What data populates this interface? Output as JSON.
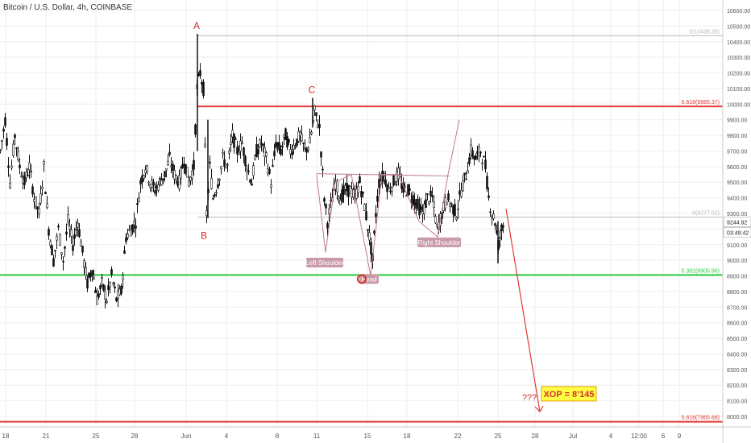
{
  "header": {
    "title": "Bitcoin / U.S. Dollar, 4h, COINBASE"
  },
  "colors": {
    "candle": "#111111",
    "grid": "#eeeeee",
    "axis_text": "#555555",
    "fib_red": "#e53935",
    "fib_green": "#2ecc40",
    "fib_gray": "#bbbbbb",
    "pattern_stroke": "#c07a8a",
    "label_bg": "#c99aa8",
    "projection": "#e53935",
    "wave_label": "#d32f2f",
    "price_tag_bg": "#ffffff",
    "annotation_box_bg": "#ffff44",
    "annotation_box_border": "#e0a000"
  },
  "chart_data": {
    "type": "candlestick",
    "title": "Bitcoin / U.S. Dollar, 4h, COINBASE",
    "y_range": [
      7900,
      10650
    ],
    "y_ticks": [
      8000,
      8100,
      8200,
      8300,
      8400,
      8500,
      8600,
      8700,
      8800,
      8900,
      9000,
      9100,
      9200,
      9300,
      9400,
      9500,
      9600,
      9700,
      9800,
      9900,
      10000,
      10100,
      10200,
      10300,
      10400,
      10500,
      10600
    ],
    "x_ticks": [
      "18",
      "21",
      "25",
      "28",
      "Jun",
      "4",
      "8",
      "11",
      "15",
      "18",
      "22",
      "25",
      "28",
      "Jul",
      "4",
      "12:00",
      "6",
      "9"
    ],
    "grid": true,
    "last_price": "9244.92",
    "countdown": "03:49:42",
    "price_path": [
      [
        0,
        9700
      ],
      [
        6,
        9900
      ],
      [
        12,
        9500
      ],
      [
        18,
        9800
      ],
      [
        24,
        9600
      ],
      [
        30,
        9500
      ],
      [
        36,
        9600
      ],
      [
        42,
        9400
      ],
      [
        48,
        9300
      ],
      [
        54,
        9600
      ],
      [
        60,
        9200
      ],
      [
        66,
        9000
      ],
      [
        72,
        9200
      ],
      [
        78,
        9000
      ],
      [
        84,
        9250
      ],
      [
        90,
        9100
      ],
      [
        96,
        9250
      ],
      [
        102,
        9050
      ],
      [
        108,
        8850
      ],
      [
        114,
        8950
      ],
      [
        120,
        8750
      ],
      [
        126,
        8850
      ],
      [
        132,
        8750
      ],
      [
        138,
        8900
      ],
      [
        144,
        8750
      ],
      [
        150,
        8800
      ],
      [
        156,
        9150
      ],
      [
        162,
        9200
      ],
      [
        168,
        9250
      ],
      [
        174,
        9500
      ],
      [
        180,
        9600
      ],
      [
        186,
        9500
      ],
      [
        192,
        9450
      ],
      [
        198,
        9500
      ],
      [
        204,
        9550
      ],
      [
        210,
        9650
      ],
      [
        216,
        9550
      ],
      [
        222,
        9500
      ],
      [
        228,
        9650
      ],
      [
        234,
        9500
      ],
      [
        240,
        9600
      ],
      [
        244,
        10100
      ],
      [
        248,
        10200
      ],
      [
        252,
        10100
      ],
      [
        256,
        9300
      ],
      [
        260,
        9600
      ],
      [
        264,
        9400
      ],
      [
        270,
        9500
      ],
      [
        276,
        9650
      ],
      [
        282,
        9600
      ],
      [
        288,
        9800
      ],
      [
        294,
        9700
      ],
      [
        300,
        9750
      ],
      [
        306,
        9600
      ],
      [
        312,
        9500
      ],
      [
        318,
        9700
      ],
      [
        324,
        9750
      ],
      [
        330,
        9650
      ],
      [
        336,
        9500
      ],
      [
        342,
        9750
      ],
      [
        348,
        9700
      ],
      [
        354,
        9800
      ],
      [
        360,
        9700
      ],
      [
        366,
        9750
      ],
      [
        372,
        9800
      ],
      [
        378,
        9700
      ],
      [
        384,
        9750
      ],
      [
        390,
        9950
      ],
      [
        396,
        9850
      ],
      [
        402,
        9400
      ],
      [
        406,
        9250
      ],
      [
        410,
        9350
      ],
      [
        416,
        9500
      ],
      [
        422,
        9400
      ],
      [
        428,
        9450
      ],
      [
        434,
        9450
      ],
      [
        440,
        9400
      ],
      [
        446,
        9500
      ],
      [
        452,
        9350
      ],
      [
        458,
        9150
      ],
      [
        462,
        9000
      ],
      [
        466,
        9300
      ],
      [
        470,
        9500
      ],
      [
        476,
        9550
      ],
      [
        482,
        9450
      ],
      [
        488,
        9500
      ],
      [
        494,
        9550
      ],
      [
        500,
        9450
      ],
      [
        506,
        9450
      ],
      [
        512,
        9400
      ],
      [
        518,
        9350
      ],
      [
        524,
        9300
      ],
      [
        530,
        9400
      ],
      [
        536,
        9400
      ],
      [
        542,
        9200
      ],
      [
        548,
        9300
      ],
      [
        554,
        9400
      ],
      [
        560,
        9350
      ],
      [
        566,
        9300
      ],
      [
        572,
        9450
      ],
      [
        578,
        9550
      ],
      [
        584,
        9700
      ],
      [
        590,
        9650
      ],
      [
        596,
        9700
      ],
      [
        602,
        9600
      ],
      [
        606,
        9400
      ],
      [
        610,
        9300
      ],
      [
        614,
        9250
      ],
      [
        618,
        9100
      ],
      [
        622,
        9200
      ],
      [
        626,
        9245
      ]
    ],
    "fib_levels": [
      {
        "label": "0.618(9985.37)",
        "value": 9985.37,
        "color": "red"
      },
      {
        "label": "0.382(8905.96)",
        "value": 8905.96,
        "color": "green"
      },
      {
        "label": "0.618(7965.68)",
        "value": 7965.68,
        "color": "red"
      },
      {
        "label": "0(10438.38)",
        "value": 10438.38,
        "color": "gray"
      },
      {
        "label": "0(9277.02)",
        "value": 9277.02,
        "color": "gray"
      }
    ],
    "wave_labels": [
      {
        "label": "A",
        "value": 10450
      },
      {
        "label": "B",
        "value": 9250
      },
      {
        "label": "C",
        "value": 10020
      }
    ],
    "pattern_labels": [
      "Left Shoulder",
      "Head",
      "Right Shoulder"
    ],
    "annotations": {
      "question": "???",
      "target_box": "XOP = 8’145"
    }
  }
}
